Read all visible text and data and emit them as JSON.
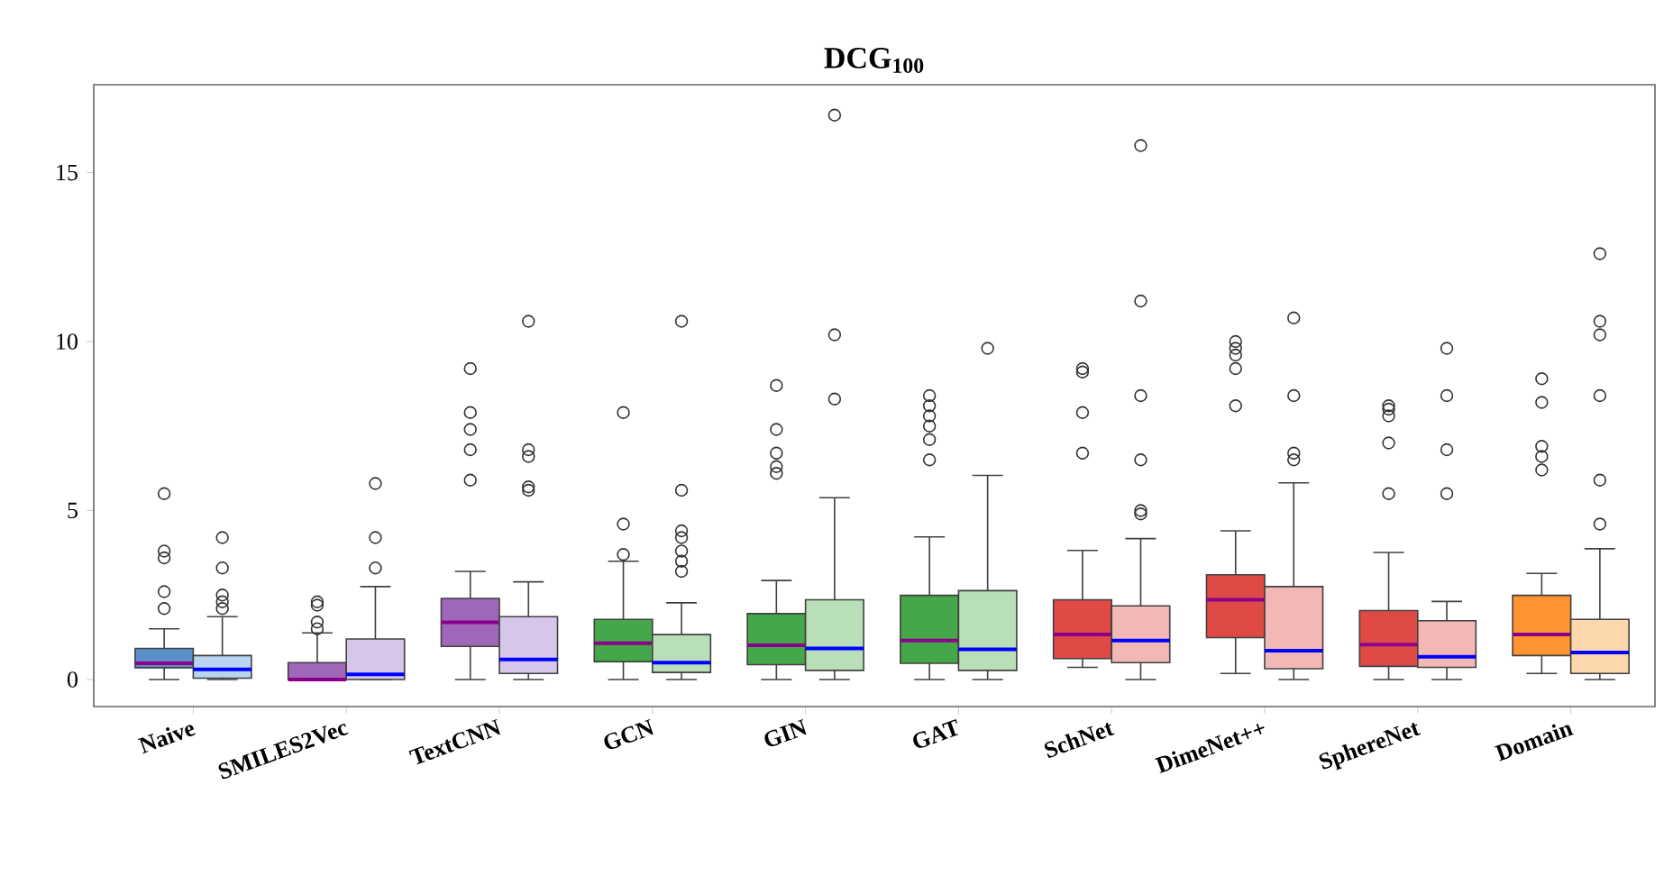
{
  "chart_data": {
    "type": "box",
    "title": "**DCG$_{100}$**",
    "categories": [
      "Naive",
      "SMILES2Vec",
      "TextCNN",
      "GCN",
      "GIN",
      "GAT",
      "SchNet",
      "DimeNet++",
      "SphereNet",
      "Domain"
    ],
    "ylim": [
      -0.8,
      17.6
    ],
    "yticks": [
      0,
      5,
      10,
      15
    ],
    "series": [
      {
        "colors": [
          "#5b8fc9",
          "#a066b8",
          "#a066b8",
          "#44a84a",
          "#44a84a",
          "#44a84a",
          "#e04a46",
          "#e04a46",
          "#e04a46",
          "#ff9430"
        ],
        "boxes": [
          {
            "low": 0,
            "q1": 0.35,
            "median": 0.48,
            "q3": 0.92,
            "high": 1.5,
            "outliers": [
              2.1,
              2.6,
              3.6,
              3.8,
              5.5
            ]
          },
          {
            "low": 0,
            "q1": 0,
            "median": 0,
            "q3": 0.5,
            "high": 1.38,
            "outliers": [
              1.5,
              1.7,
              2.2,
              2.3
            ]
          },
          {
            "low": 0,
            "q1": 0.98,
            "median": 1.69,
            "q3": 2.4,
            "high": 3.2,
            "outliers": [
              5.9,
              6.8,
              7.4,
              7.9,
              9.2
            ]
          },
          {
            "low": 0,
            "q1": 0.53,
            "median": 1.07,
            "q3": 1.78,
            "high": 3.5,
            "outliers": [
              3.7,
              4.6,
              7.9
            ]
          },
          {
            "low": 0,
            "q1": 0.44,
            "median": 1.01,
            "q3": 1.95,
            "high": 2.93,
            "outliers": [
              6.1,
              6.3,
              6.7,
              7.4,
              8.7
            ]
          },
          {
            "low": 0,
            "q1": 0.48,
            "median": 1.15,
            "q3": 2.49,
            "high": 4.22,
            "outliers": [
              6.5,
              7.1,
              7.5,
              7.8,
              8.1,
              8.4
            ]
          },
          {
            "low": 0.36,
            "q1": 0.62,
            "median": 1.33,
            "q3": 2.36,
            "high": 3.82,
            "outliers": [
              6.7,
              7.9,
              9.1,
              9.2
            ]
          },
          {
            "low": 0.18,
            "q1": 1.24,
            "median": 2.36,
            "q3": 3.1,
            "high": 4.4,
            "outliers": [
              8.1,
              9.2,
              9.6,
              9.8,
              10.0
            ]
          },
          {
            "low": 0,
            "q1": 0.39,
            "median": 1.03,
            "q3": 2.04,
            "high": 3.76,
            "outliers": [
              5.5,
              7.0,
              7.8,
              8.0,
              8.1
            ]
          },
          {
            "low": 0.18,
            "q1": 0.71,
            "median": 1.33,
            "q3": 2.49,
            "high": 3.14,
            "outliers": [
              6.2,
              6.6,
              6.9,
              8.2,
              8.9
            ]
          }
        ]
      },
      {
        "colors": [
          "#b8d4f0",
          "#d6c6ea",
          "#d6c6ea",
          "#b8dfb8",
          "#b8dfb8",
          "#b8dfb8",
          "#f2b8b5",
          "#f2b8b5",
          "#f2b8b5",
          "#fcd6ac"
        ],
        "boxes": [
          {
            "low": 0,
            "q1": 0.04,
            "median": 0.3,
            "q3": 0.71,
            "high": 1.86,
            "outliers": [
              2.1,
              2.3,
              2.5,
              3.3,
              4.2
            ]
          },
          {
            "low": 0,
            "q1": 0,
            "median": 0.15,
            "q3": 1.2,
            "high": 2.75,
            "outliers": [
              3.3,
              4.2,
              5.8
            ]
          },
          {
            "low": 0,
            "q1": 0.18,
            "median": 0.59,
            "q3": 1.86,
            "high": 2.89,
            "outliers": [
              5.6,
              5.7,
              6.6,
              6.8,
              10.6
            ]
          },
          {
            "low": 0,
            "q1": 0.21,
            "median": 0.5,
            "q3": 1.33,
            "high": 2.27,
            "outliers": [
              3.2,
              3.5,
              3.8,
              4.2,
              4.4,
              5.6,
              10.6
            ]
          },
          {
            "low": 0,
            "q1": 0.27,
            "median": 0.92,
            "q3": 2.36,
            "high": 5.38,
            "outliers": [
              8.3,
              10.2,
              16.7
            ]
          },
          {
            "low": 0,
            "q1": 0.27,
            "median": 0.89,
            "q3": 2.63,
            "high": 6.04,
            "outliers": [
              9.8
            ]
          },
          {
            "low": 0,
            "q1": 0.5,
            "median": 1.15,
            "q3": 2.18,
            "high": 4.17,
            "outliers": [
              4.9,
              5.0,
              6.5,
              8.4,
              11.2,
              15.8
            ]
          },
          {
            "low": 0,
            "q1": 0.32,
            "median": 0.85,
            "q3": 2.75,
            "high": 5.82,
            "outliers": [
              6.5,
              6.7,
              8.4,
              10.7
            ]
          },
          {
            "low": 0,
            "q1": 0.36,
            "median": 0.67,
            "q3": 1.74,
            "high": 2.31,
            "outliers": [
              5.5,
              6.8,
              8.4,
              9.8
            ]
          },
          {
            "low": 0,
            "q1": 0.18,
            "median": 0.8,
            "q3": 1.78,
            "high": 3.87,
            "outliers": [
              4.6,
              5.9,
              8.4,
              10.2,
              10.6,
              12.6
            ]
          }
        ]
      }
    ]
  }
}
